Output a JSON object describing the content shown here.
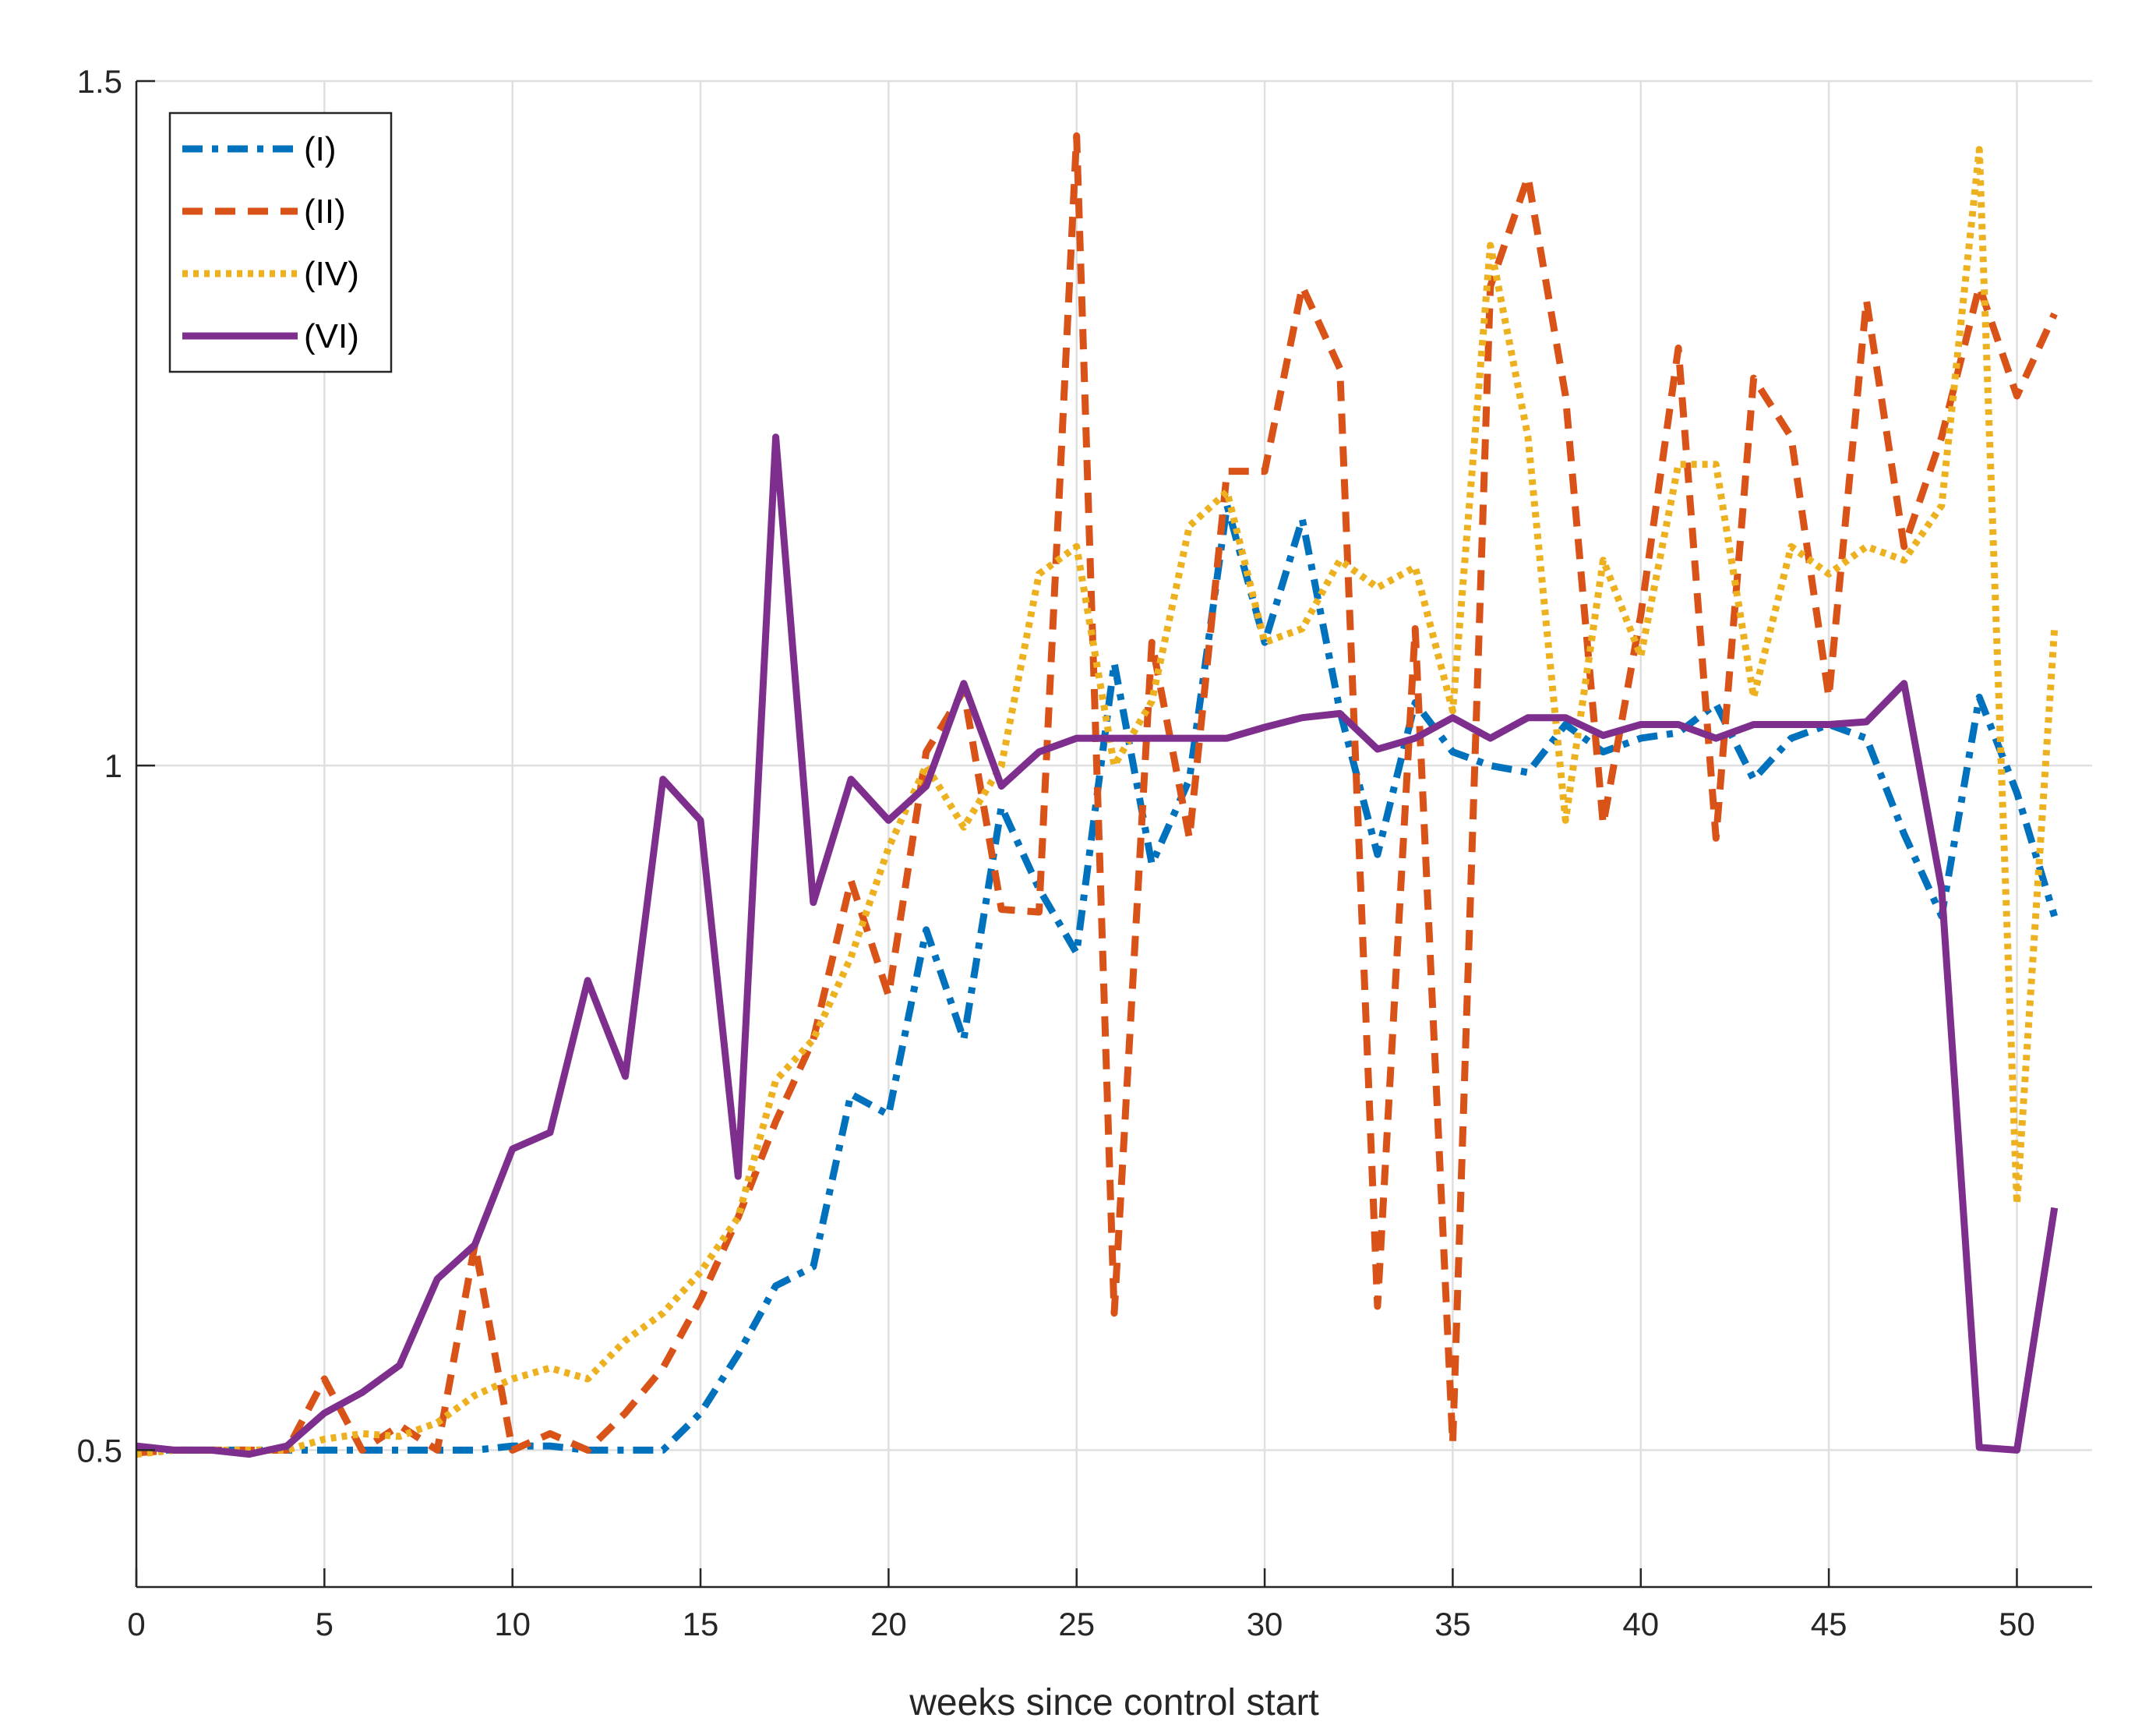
{
  "chart_data": {
    "type": "line",
    "title": "",
    "xlabel": "weeks since control start",
    "ylabel": "",
    "xlim": [
      0,
      52
    ],
    "ylim": [
      0.4,
      1.5
    ],
    "xticks": [
      0,
      5,
      10,
      15,
      20,
      25,
      30,
      35,
      40,
      45,
      50
    ],
    "yticks": [
      0.5,
      1,
      1.5
    ],
    "ytick_labels": [
      "0.5",
      "1",
      "1.5"
    ],
    "grid": true,
    "legend_position": "top-left",
    "series": [
      {
        "name": "(I)",
        "color": "#0072BD",
        "style": "dashdot",
        "x": [
          0,
          1,
          2,
          3,
          4,
          5,
          6,
          7,
          8,
          9,
          10,
          11,
          12,
          13,
          14,
          15,
          16,
          17,
          18,
          19,
          20,
          21,
          22,
          23,
          24,
          25,
          26,
          27,
          28,
          29,
          30,
          31,
          32,
          33,
          34,
          35,
          36,
          37,
          38,
          39,
          40,
          41,
          42,
          43,
          44,
          45,
          46,
          47,
          48,
          49,
          50,
          51
        ],
        "values": [
          0.5,
          0.5,
          0.5,
          0.5,
          0.5,
          0.5,
          0.5,
          0.5,
          0.5,
          0.5,
          0.503,
          0.503,
          0.5,
          0.5,
          0.5,
          0.527,
          0.57,
          0.62,
          0.634,
          0.76,
          0.745,
          0.88,
          0.8,
          0.97,
          0.91,
          0.863,
          1.075,
          0.928,
          0.99,
          1.19,
          1.09,
          1.18,
          1.04,
          0.935,
          1.046,
          1.01,
          1.0,
          0.995,
          1.03,
          1.01,
          1.02,
          1.024,
          1.045,
          0.99,
          1.02,
          1.03,
          1.02,
          0.95,
          0.89,
          1.05,
          0.98,
          0.89
        ]
      },
      {
        "name": "(II)",
        "color": "#D95319",
        "style": "dashed",
        "x": [
          0,
          1,
          2,
          3,
          4,
          5,
          6,
          7,
          8,
          9,
          10,
          11,
          12,
          13,
          14,
          15,
          16,
          17,
          18,
          19,
          20,
          21,
          22,
          23,
          24,
          25,
          26,
          27,
          28,
          29,
          30,
          31,
          32,
          33,
          34,
          35,
          36,
          37,
          38,
          39,
          40,
          41,
          42,
          43,
          44,
          45,
          46,
          47,
          48,
          49,
          50,
          51
        ],
        "values": [
          0.498,
          0.5,
          0.5,
          0.5,
          0.5,
          0.552,
          0.5,
          0.518,
          0.5,
          0.65,
          0.5,
          0.512,
          0.5,
          0.527,
          0.56,
          0.61,
          0.67,
          0.74,
          0.8,
          0.916,
          0.832,
          1.01,
          1.055,
          0.895,
          0.893,
          1.46,
          0.6,
          1.09,
          0.947,
          1.215,
          1.215,
          1.35,
          1.29,
          0.605,
          1.1,
          0.505,
          1.35,
          1.43,
          1.27,
          0.957,
          1.11,
          1.305,
          0.947,
          1.283,
          1.24,
          1.05,
          1.34,
          1.16,
          1.24,
          1.35,
          1.27,
          1.33
        ]
      },
      {
        "name": "(IV)",
        "color": "#EDB120",
        "style": "dotted",
        "x": [
          0,
          1,
          2,
          3,
          4,
          5,
          6,
          7,
          8,
          9,
          10,
          11,
          12,
          13,
          14,
          15,
          16,
          17,
          18,
          19,
          20,
          21,
          22,
          23,
          24,
          25,
          26,
          27,
          28,
          29,
          30,
          31,
          32,
          33,
          34,
          35,
          36,
          37,
          38,
          39,
          40,
          41,
          42,
          43,
          44,
          45,
          46,
          47,
          48,
          49,
          50,
          51
        ],
        "values": [
          0.497,
          0.5,
          0.5,
          0.5,
          0.5,
          0.508,
          0.512,
          0.51,
          0.52,
          0.54,
          0.552,
          0.56,
          0.552,
          0.58,
          0.6,
          0.63,
          0.67,
          0.77,
          0.8,
          0.86,
          0.94,
          1.0,
          0.955,
          1.0,
          1.14,
          1.16,
          1.0,
          1.047,
          1.175,
          1.2,
          1.09,
          1.1,
          1.15,
          1.13,
          1.145,
          1.04,
          1.38,
          1.24,
          0.96,
          1.15,
          1.08,
          1.22,
          1.22,
          1.05,
          1.16,
          1.14,
          1.16,
          1.15,
          1.19,
          1.45,
          0.68,
          1.1
        ]
      },
      {
        "name": "(VI)",
        "color": "#7E2F8E",
        "style": "solid",
        "x": [
          0,
          1,
          2,
          3,
          4,
          5,
          6,
          7,
          8,
          9,
          10,
          11,
          12,
          13,
          14,
          15,
          16,
          17,
          18,
          19,
          20,
          21,
          22,
          23,
          24,
          25,
          26,
          27,
          28,
          29,
          30,
          31,
          32,
          33,
          34,
          35,
          36,
          37,
          38,
          39,
          40,
          41,
          42,
          43,
          44,
          45,
          46,
          47,
          48,
          49,
          50,
          51
        ],
        "values": [
          0.503,
          0.5,
          0.5,
          0.497,
          0.503,
          0.527,
          0.542,
          0.562,
          0.625,
          0.65,
          0.72,
          0.732,
          0.843,
          0.773,
          0.99,
          0.96,
          0.7,
          1.24,
          0.9,
          0.99,
          0.96,
          0.985,
          1.06,
          0.985,
          1.01,
          1.02,
          1.02,
          1.02,
          1.02,
          1.02,
          1.028,
          1.035,
          1.038,
          1.012,
          1.02,
          1.035,
          1.02,
          1.035,
          1.035,
          1.022,
          1.03,
          1.03,
          1.02,
          1.03,
          1.03,
          1.03,
          1.032,
          1.06,
          0.91,
          0.502,
          0.5,
          0.677
        ]
      }
    ]
  }
}
